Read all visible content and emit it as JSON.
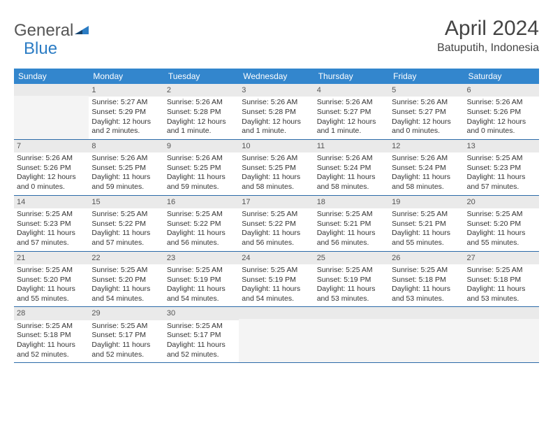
{
  "logo": {
    "text1": "General",
    "text2": "Blue"
  },
  "title": "April 2024",
  "location": "Batuputih, Indonesia",
  "colors": {
    "headerBg": "#3386cd",
    "headerText": "#ffffff",
    "dateBarBg": "#eaeaea",
    "weekBorder": "#2b6aa8",
    "emptyBg": "#f4f4f4"
  },
  "dayHeaders": [
    "Sunday",
    "Monday",
    "Tuesday",
    "Wednesday",
    "Thursday",
    "Friday",
    "Saturday"
  ],
  "weeks": [
    [
      {
        "empty": true
      },
      {
        "date": "1",
        "sunrise": "5:27 AM",
        "sunset": "5:29 PM",
        "daylight": "12 hours and 2 minutes."
      },
      {
        "date": "2",
        "sunrise": "5:26 AM",
        "sunset": "5:28 PM",
        "daylight": "12 hours and 1 minute."
      },
      {
        "date": "3",
        "sunrise": "5:26 AM",
        "sunset": "5:28 PM",
        "daylight": "12 hours and 1 minute."
      },
      {
        "date": "4",
        "sunrise": "5:26 AM",
        "sunset": "5:27 PM",
        "daylight": "12 hours and 1 minute."
      },
      {
        "date": "5",
        "sunrise": "5:26 AM",
        "sunset": "5:27 PM",
        "daylight": "12 hours and 0 minutes."
      },
      {
        "date": "6",
        "sunrise": "5:26 AM",
        "sunset": "5:26 PM",
        "daylight": "12 hours and 0 minutes."
      }
    ],
    [
      {
        "date": "7",
        "sunrise": "5:26 AM",
        "sunset": "5:26 PM",
        "daylight": "12 hours and 0 minutes."
      },
      {
        "date": "8",
        "sunrise": "5:26 AM",
        "sunset": "5:25 PM",
        "daylight": "11 hours and 59 minutes."
      },
      {
        "date": "9",
        "sunrise": "5:26 AM",
        "sunset": "5:25 PM",
        "daylight": "11 hours and 59 minutes."
      },
      {
        "date": "10",
        "sunrise": "5:26 AM",
        "sunset": "5:25 PM",
        "daylight": "11 hours and 58 minutes."
      },
      {
        "date": "11",
        "sunrise": "5:26 AM",
        "sunset": "5:24 PM",
        "daylight": "11 hours and 58 minutes."
      },
      {
        "date": "12",
        "sunrise": "5:26 AM",
        "sunset": "5:24 PM",
        "daylight": "11 hours and 58 minutes."
      },
      {
        "date": "13",
        "sunrise": "5:25 AM",
        "sunset": "5:23 PM",
        "daylight": "11 hours and 57 minutes."
      }
    ],
    [
      {
        "date": "14",
        "sunrise": "5:25 AM",
        "sunset": "5:23 PM",
        "daylight": "11 hours and 57 minutes."
      },
      {
        "date": "15",
        "sunrise": "5:25 AM",
        "sunset": "5:22 PM",
        "daylight": "11 hours and 57 minutes."
      },
      {
        "date": "16",
        "sunrise": "5:25 AM",
        "sunset": "5:22 PM",
        "daylight": "11 hours and 56 minutes."
      },
      {
        "date": "17",
        "sunrise": "5:25 AM",
        "sunset": "5:22 PM",
        "daylight": "11 hours and 56 minutes."
      },
      {
        "date": "18",
        "sunrise": "5:25 AM",
        "sunset": "5:21 PM",
        "daylight": "11 hours and 56 minutes."
      },
      {
        "date": "19",
        "sunrise": "5:25 AM",
        "sunset": "5:21 PM",
        "daylight": "11 hours and 55 minutes."
      },
      {
        "date": "20",
        "sunrise": "5:25 AM",
        "sunset": "5:20 PM",
        "daylight": "11 hours and 55 minutes."
      }
    ],
    [
      {
        "date": "21",
        "sunrise": "5:25 AM",
        "sunset": "5:20 PM",
        "daylight": "11 hours and 55 minutes."
      },
      {
        "date": "22",
        "sunrise": "5:25 AM",
        "sunset": "5:20 PM",
        "daylight": "11 hours and 54 minutes."
      },
      {
        "date": "23",
        "sunrise": "5:25 AM",
        "sunset": "5:19 PM",
        "daylight": "11 hours and 54 minutes."
      },
      {
        "date": "24",
        "sunrise": "5:25 AM",
        "sunset": "5:19 PM",
        "daylight": "11 hours and 54 minutes."
      },
      {
        "date": "25",
        "sunrise": "5:25 AM",
        "sunset": "5:19 PM",
        "daylight": "11 hours and 53 minutes."
      },
      {
        "date": "26",
        "sunrise": "5:25 AM",
        "sunset": "5:18 PM",
        "daylight": "11 hours and 53 minutes."
      },
      {
        "date": "27",
        "sunrise": "5:25 AM",
        "sunset": "5:18 PM",
        "daylight": "11 hours and 53 minutes."
      }
    ],
    [
      {
        "date": "28",
        "sunrise": "5:25 AM",
        "sunset": "5:18 PM",
        "daylight": "11 hours and 52 minutes."
      },
      {
        "date": "29",
        "sunrise": "5:25 AM",
        "sunset": "5:17 PM",
        "daylight": "11 hours and 52 minutes."
      },
      {
        "date": "30",
        "sunrise": "5:25 AM",
        "sunset": "5:17 PM",
        "daylight": "11 hours and 52 minutes."
      },
      {
        "empty": true
      },
      {
        "empty": true
      },
      {
        "empty": true
      },
      {
        "empty": true
      }
    ]
  ]
}
